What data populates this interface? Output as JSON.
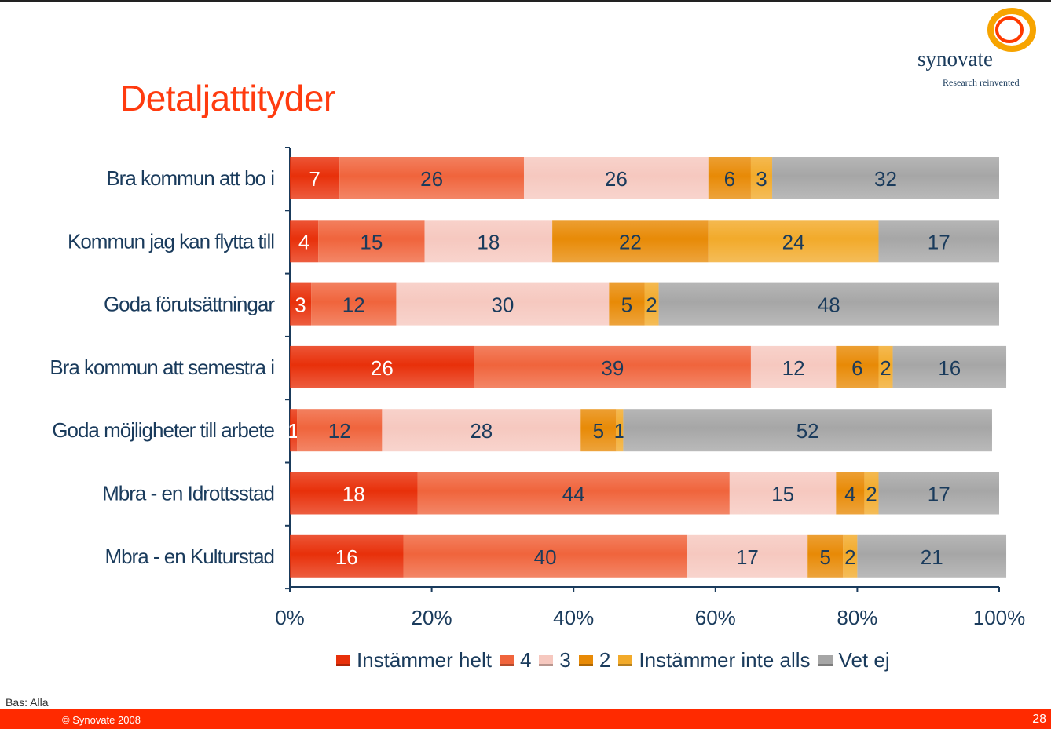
{
  "page": {
    "title": "Detaljattityder",
    "base_note": "Bas: Alla",
    "copyright": "© Synovate 2008",
    "page_number": "28"
  },
  "logo": {
    "name": "synovate",
    "tagline": "Research reinvented",
    "colors": {
      "ring": "#f7a400",
      "ring_inner": "#ff3a00",
      "text": "#1a3b5c"
    }
  },
  "chart_data": {
    "type": "bar",
    "orientation": "horizontal",
    "stacked": "100%",
    "categories": [
      "Bra kommun att bo i",
      "Kommun jag kan flytta till",
      "Goda förutsättningar",
      "Bra kommun att semestra i",
      "Goda möjligheter till arbete",
      "Mbra - en Idrottsstad",
      "Mbra - en Kulturstad"
    ],
    "series": [
      {
        "name": "Instämmer helt",
        "color": "#e8300a",
        "label_color": "#ffffff",
        "values": [
          7,
          4,
          3,
          26,
          1,
          18,
          16
        ]
      },
      {
        "name": "4",
        "color": "#f0643c",
        "label_color": "#1a3b5c",
        "values": [
          26,
          15,
          12,
          39,
          12,
          44,
          40
        ]
      },
      {
        "name": "3",
        "color": "#f6c8bf",
        "label_color": "#1a3b5c",
        "values": [
          26,
          18,
          30,
          12,
          28,
          15,
          17
        ]
      },
      {
        "name": "2",
        "color": "#e88a06",
        "label_color": "#1a3b5c",
        "values": [
          6,
          22,
          5,
          6,
          5,
          4,
          5
        ]
      },
      {
        "name": "Instämmer inte alls",
        "color": "#f2aa2a",
        "label_color": "#1a3b5c",
        "values": [
          3,
          24,
          2,
          2,
          1,
          2,
          2
        ]
      },
      {
        "name": "Vet ej",
        "color": "#a6a6a6",
        "label_color": "#1a3b5c",
        "values": [
          32,
          17,
          48,
          16,
          52,
          17,
          21
        ]
      }
    ],
    "x_ticks": [
      "0%",
      "20%",
      "40%",
      "60%",
      "80%",
      "100%"
    ],
    "xlim": [
      0,
      100
    ],
    "legend_position": "bottom",
    "grid": false
  }
}
